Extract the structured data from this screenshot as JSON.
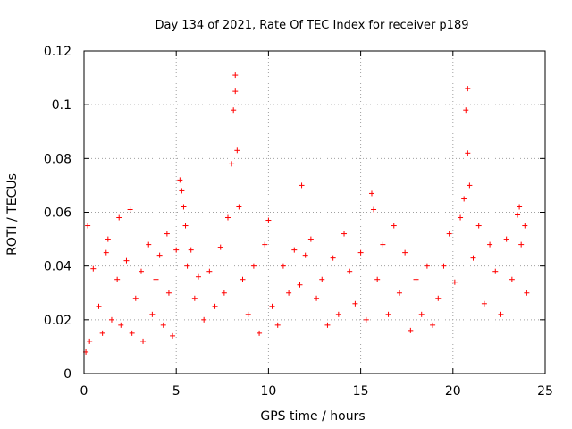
{
  "chart_data": {
    "type": "scatter",
    "title": "Day 134 of 2021, Rate Of TEC Index for receiver p189",
    "xlabel": "GPS time / hours",
    "ylabel": "ROTI / TECUs",
    "xlim": [
      0,
      25
    ],
    "ylim": [
      0,
      0.12
    ],
    "xticks": [
      "0",
      "5",
      "10",
      "15",
      "20",
      "25"
    ],
    "yticks": [
      "0",
      "0.02",
      "0.04",
      "0.06",
      "0.08",
      "0.1",
      "0.12"
    ],
    "grid": true,
    "marker": "plus",
    "color": "#ff0000",
    "series": [
      {
        "x": [
          0.1,
          0.2,
          0.3,
          0.5,
          0.8,
          1.0,
          1.2,
          1.3,
          1.5,
          1.8,
          1.9,
          2.0,
          2.3,
          2.5,
          2.6,
          2.8,
          3.1,
          3.2,
          3.5,
          3.7,
          3.9,
          4.1,
          4.3,
          4.5,
          4.6,
          4.8,
          5.0,
          5.2,
          5.3,
          5.4,
          5.5,
          5.6,
          5.8,
          6.0,
          6.2,
          6.5,
          6.8,
          7.1,
          7.4,
          7.6,
          7.8,
          8.0,
          8.1,
          8.2,
          8.2,
          8.3,
          8.4,
          8.6,
          8.9,
          9.2,
          9.5,
          9.8,
          10.0,
          10.2,
          10.5,
          10.8,
          11.1,
          11.4,
          11.7,
          11.8,
          12.0,
          12.3,
          12.6,
          12.9,
          13.2,
          13.5,
          13.8,
          14.1,
          14.4,
          14.7,
          15.0,
          15.3,
          15.6,
          15.7,
          15.9,
          16.2,
          16.5,
          16.8,
          17.1,
          17.4,
          17.7,
          18.0,
          18.3,
          18.6,
          18.9,
          19.2,
          19.5,
          19.8,
          20.1,
          20.4,
          20.6,
          20.7,
          20.8,
          20.8,
          20.9,
          21.1,
          21.4,
          21.7,
          22.0,
          22.3,
          22.6,
          22.9,
          23.2,
          23.5,
          23.6,
          23.7,
          23.9,
          24.0
        ],
        "y": [
          0.008,
          0.055,
          0.012,
          0.039,
          0.025,
          0.015,
          0.045,
          0.05,
          0.02,
          0.035,
          0.058,
          0.018,
          0.042,
          0.061,
          0.015,
          0.028,
          0.038,
          0.012,
          0.048,
          0.022,
          0.035,
          0.044,
          0.018,
          0.052,
          0.03,
          0.014,
          0.046,
          0.072,
          0.068,
          0.062,
          0.055,
          0.04,
          0.046,
          0.028,
          0.036,
          0.02,
          0.038,
          0.025,
          0.047,
          0.03,
          0.058,
          0.078,
          0.098,
          0.111,
          0.105,
          0.083,
          0.062,
          0.035,
          0.022,
          0.04,
          0.015,
          0.048,
          0.057,
          0.025,
          0.018,
          0.04,
          0.03,
          0.046,
          0.033,
          0.07,
          0.044,
          0.05,
          0.028,
          0.035,
          0.018,
          0.043,
          0.022,
          0.052,
          0.038,
          0.026,
          0.045,
          0.02,
          0.067,
          0.061,
          0.035,
          0.048,
          0.022,
          0.055,
          0.03,
          0.045,
          0.016,
          0.035,
          0.022,
          0.04,
          0.018,
          0.028,
          0.04,
          0.052,
          0.034,
          0.058,
          0.065,
          0.098,
          0.106,
          0.082,
          0.07,
          0.043,
          0.055,
          0.026,
          0.048,
          0.038,
          0.022,
          0.05,
          0.035,
          0.059,
          0.062,
          0.048,
          0.055,
          0.03
        ]
      }
    ]
  }
}
